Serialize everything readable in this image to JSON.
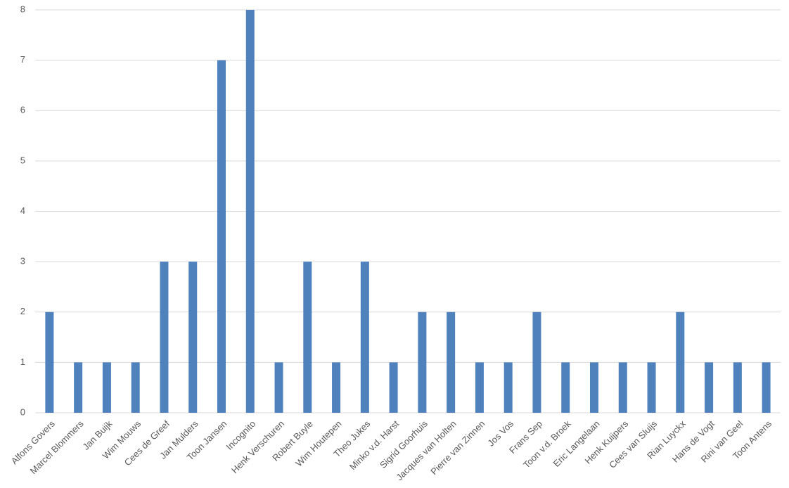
{
  "chart_data": {
    "type": "bar",
    "categories": [
      "Alfons Govers",
      "Marcel Blommers",
      "Jan Buijk",
      "Wim Mouws",
      "Cees de Greef",
      "Jan Mulders",
      "Toon Jansen",
      "Incognito",
      "Henk Verschuren",
      "Robert Buyle",
      "Wim Houtepen",
      "Theo Jukes",
      "Minko v.d. Harst",
      "Sigrid Goorhuis",
      "Jacques van Holten",
      "Pierre van Zinnen",
      "Jos Vos",
      "Frans Sep",
      "Toon v.d. Broek",
      "Eric Langelaan",
      "Henk Kuijpers",
      "Cees van Sluijs",
      "Rian Luyckx",
      "Hans de Vogt",
      "Rini van Geel",
      "Toon Antens"
    ],
    "values": [
      2,
      1,
      1,
      1,
      3,
      3,
      7,
      8,
      1,
      3,
      1,
      3,
      1,
      2,
      2,
      1,
      1,
      2,
      1,
      1,
      1,
      1,
      2,
      1,
      1,
      1
    ],
    "color": "#4f81bd",
    "ylim": [
      0,
      8
    ],
    "yticks": [
      0,
      1,
      2,
      3,
      4,
      5,
      6,
      7,
      8
    ],
    "grid": true
  }
}
